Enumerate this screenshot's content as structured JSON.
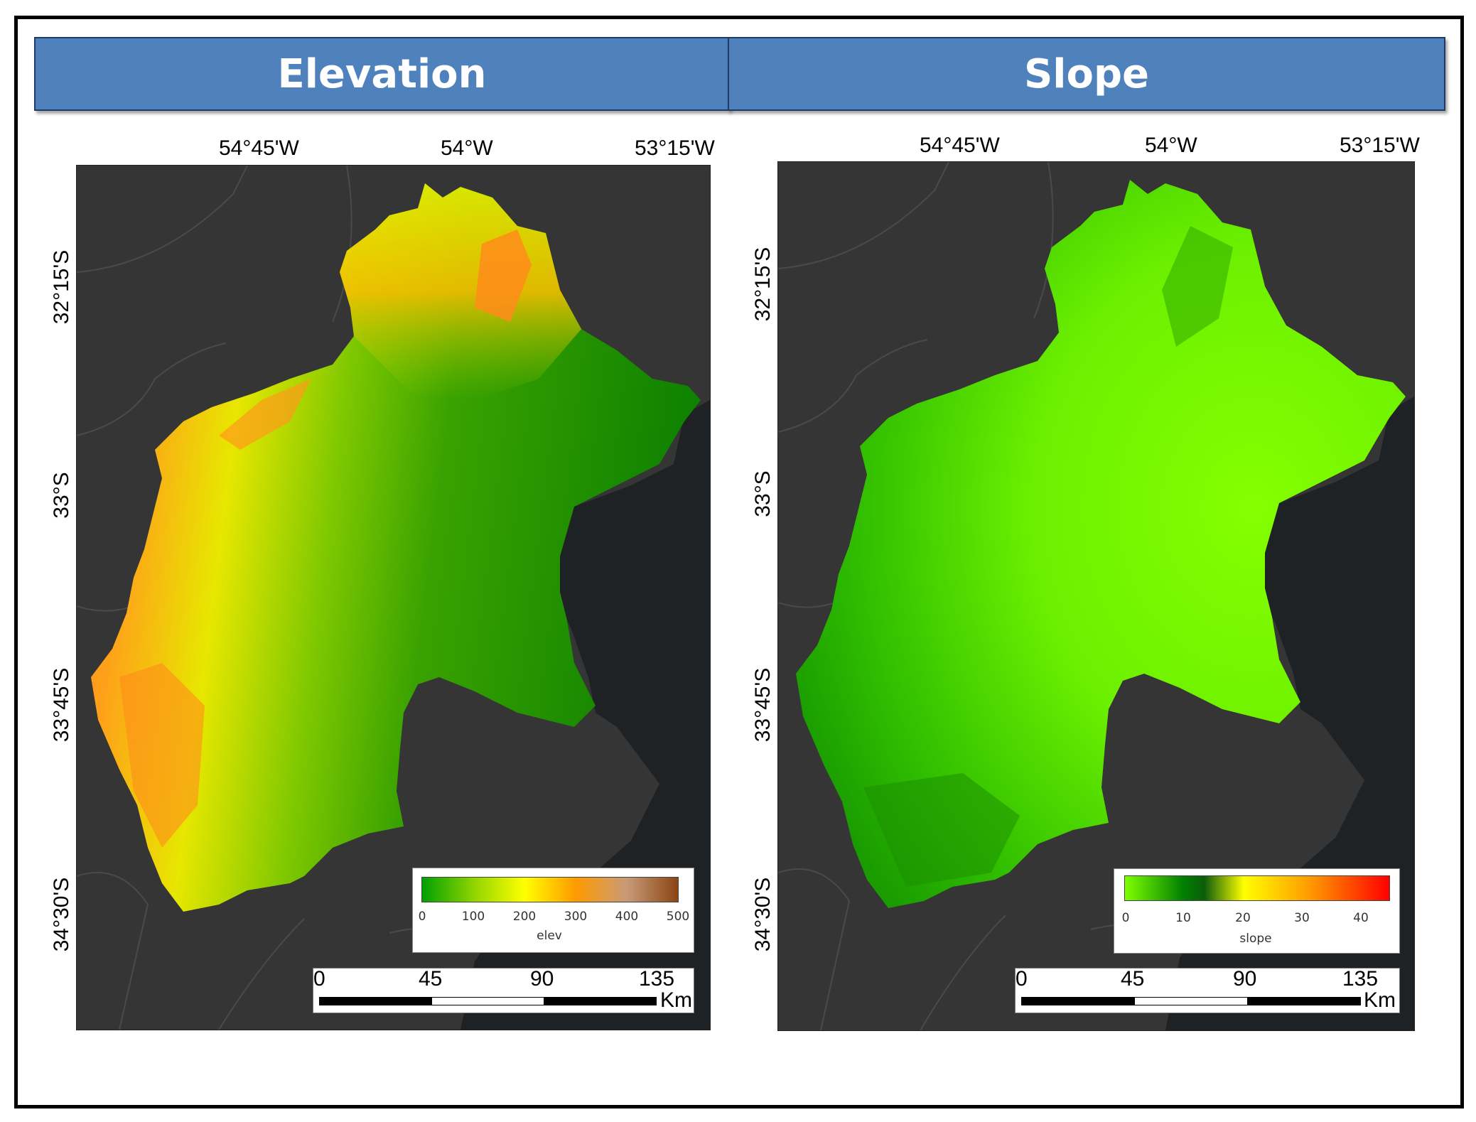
{
  "panels": {
    "left": {
      "title": "Elevation",
      "lon_labels": [
        "54°45'W",
        "54°W",
        "53°15'W"
      ],
      "lat_labels": [
        "32°15'S",
        "33°S",
        "33°45'S",
        "34°30'S"
      ],
      "legend": {
        "title": "elev",
        "ticks": [
          "0",
          "100",
          "200",
          "300",
          "400",
          "500"
        ],
        "colors": [
          "#00a000",
          "#8fd400",
          "#ffff00",
          "#ff9a00",
          "#c89a78",
          "#8b4513"
        ]
      },
      "scale": {
        "ticks": [
          "0",
          "45",
          "90",
          "135"
        ],
        "unit": "Km"
      }
    },
    "right": {
      "title": "Slope",
      "lon_labels": [
        "54°45'W",
        "54°W",
        "53°15'W"
      ],
      "lat_labels": [
        "32°15'S",
        "33°S",
        "33°45'S",
        "34°30'S"
      ],
      "legend": {
        "title": "slope",
        "ticks": [
          "0",
          "10",
          "20",
          "30",
          "40"
        ],
        "colors": [
          "#7fff00",
          "#008000",
          "#0b5d0b",
          "#ffff00",
          "#ff9a00",
          "#ff0000"
        ]
      },
      "scale": {
        "ticks": [
          "0",
          "45",
          "90",
          "135"
        ],
        "unit": "Km"
      }
    }
  },
  "colors": {
    "header_bg": "#4f81bd",
    "map_bg": "#353535",
    "sea": "#1f2224",
    "elev_low": "#1e8c00",
    "elev_mid": "#e7e700",
    "elev_high": "#ff8c1a",
    "slope_flat": "#7dfc00",
    "slope_steep": "#1a9c00"
  }
}
